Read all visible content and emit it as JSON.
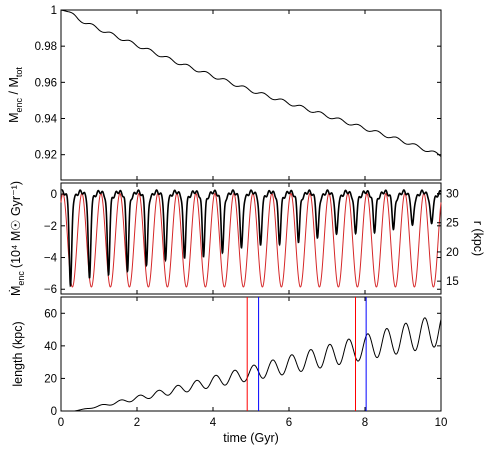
{
  "chart_data": [
    {
      "panel": "top",
      "type": "line",
      "ylabel_main": "M",
      "ylabel_sub1": "enc",
      "ylabel_sep": " / M",
      "ylabel_sub2": "tot",
      "xlim": [
        0,
        10
      ],
      "ylim": [
        0.906,
        1.0
      ],
      "yticks": [
        "1",
        "0.98",
        "0.96",
        "0.94",
        "0.92"
      ],
      "ytick_values": [
        1.0,
        0.98,
        0.96,
        0.94,
        0.92
      ],
      "series": [
        {
          "color": "#000000",
          "x": [
            0,
            0.1,
            0.2,
            0.45,
            0.7,
            1.0,
            1.5,
            2,
            2.5,
            3,
            3.5,
            4,
            4.5,
            5,
            5.5,
            6,
            6.5,
            7,
            7.5,
            8,
            8.5,
            9,
            9.5,
            10
          ],
          "y": [
            1.0,
            0.9995,
            0.999,
            0.995,
            0.9925,
            0.9895,
            0.985,
            0.9805,
            0.976,
            0.9715,
            0.9675,
            0.9635,
            0.9595,
            0.9555,
            0.952,
            0.9485,
            0.945,
            0.9415,
            0.938,
            0.9345,
            0.931,
            0.9275,
            0.9235,
            0.9195
          ]
        }
      ]
    },
    {
      "panel": "middle",
      "type": "line",
      "ylabel_left": "(10⁴ M☉ Gyr⁻¹)",
      "ylabel_left_main": "Ṁ",
      "ylabel_left_sub": "enc",
      "ylabel_right": "r (kpc)",
      "xlim": [
        0,
        10
      ],
      "ylim_left": [
        -6.3,
        0.7
      ],
      "ylim_right": [
        12.8,
        31.8
      ],
      "yticks_left": [
        "0",
        "−2",
        "−4",
        "−6"
      ],
      "ytick_values_left": [
        0,
        -2,
        -4,
        -6
      ],
      "yticks_right": [
        "30",
        "25",
        "20",
        "15"
      ],
      "ytick_values_right": [
        30,
        25,
        20,
        15
      ],
      "series": [
        {
          "axis": "right",
          "color": "#d62728",
          "period_gyr": 0.5,
          "first_peak_gyr": 0.05,
          "r_max": 30,
          "r_min": 14
        },
        {
          "axis": "left",
          "color": "#000000",
          "period_gyr": 0.5,
          "trough_phase_gyr": 0.25,
          "trough_depth_start": -6,
          "trough_depth_end": -1.5,
          "baseline": 0
        }
      ]
    },
    {
      "panel": "bottom",
      "type": "line",
      "xlabel": "time (Gyr)",
      "ylabel": "length (kpc)",
      "xlim": [
        0,
        10
      ],
      "ylim": [
        0,
        70
      ],
      "xticks": [
        "0",
        "2",
        "4",
        "6",
        "8",
        "10"
      ],
      "xtick_values": [
        0,
        2,
        4,
        6,
        8,
        10
      ],
      "yticks": [
        "60",
        "40",
        "20",
        "0"
      ],
      "ytick_values": [
        60,
        40,
        20,
        0
      ],
      "series": [
        {
          "color": "#000000",
          "start_gyr": 0.35,
          "period_gyr": 0.5,
          "mean_at_10": 50,
          "amp_at_10": 10
        }
      ],
      "vlines": [
        {
          "x": 4.9,
          "color": "#ff0000"
        },
        {
          "x": 5.2,
          "color": "#0000ff"
        },
        {
          "x": 7.75,
          "color": "#ff0000"
        },
        {
          "x": 8.03,
          "color": "#0000ff"
        }
      ]
    }
  ]
}
